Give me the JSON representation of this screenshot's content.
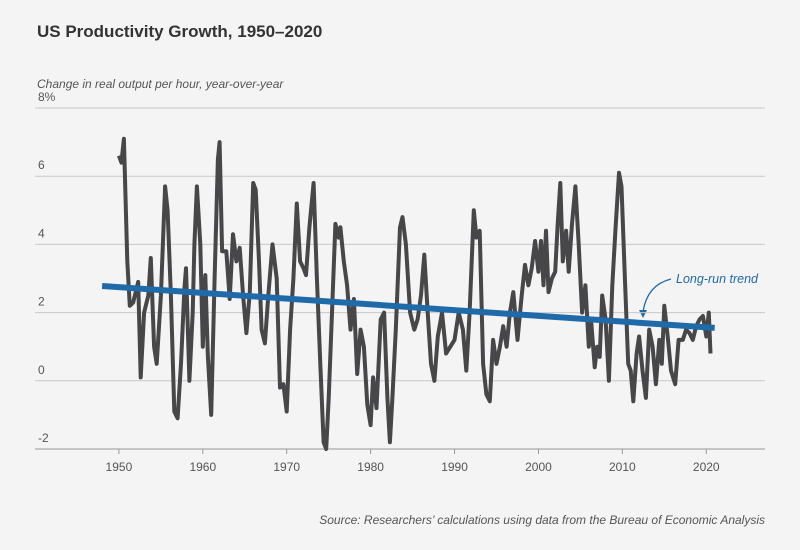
{
  "chart_data": {
    "type": "line",
    "title": "US Productivity Growth, 1950–2020",
    "subtitle": "Change in real output per hour, year-over-year",
    "source": "Source: Researchers’ calculations using data from the Bureau of Economic Analysis",
    "xlim": [
      1940,
      2027
    ],
    "xticks": [
      1950,
      1960,
      1970,
      1980,
      1990,
      2000,
      2010,
      2020
    ],
    "ylim": [
      -2,
      8
    ],
    "yticks": [
      -2,
      0,
      2,
      4,
      6,
      {
        "value": 8,
        "label": "8%"
      }
    ],
    "grid": true,
    "series": [
      {
        "color": "#474749",
        "x": [
          1950.0,
          1950.3,
          1950.6,
          1951.0,
          1951.3,
          1951.7,
          1952.0,
          1952.3,
          1952.6,
          1953.0,
          1953.5,
          1953.8,
          1954.2,
          1954.5,
          1955.0,
          1955.5,
          1955.8,
          1956.2,
          1956.6,
          1957.0,
          1957.4,
          1957.8,
          1958.0,
          1958.4,
          1958.8,
          1959.0,
          1959.3,
          1959.7,
          1960.0,
          1960.3,
          1960.6,
          1961.0,
          1961.4,
          1961.8,
          1962.0,
          1962.3,
          1962.8,
          1963.2,
          1963.6,
          1964.0,
          1964.4,
          1964.8,
          1965.2,
          1965.6,
          1966.0,
          1966.3,
          1966.7,
          1967.0,
          1967.4,
          1967.8,
          1968.3,
          1968.8,
          1969.2,
          1969.6,
          1970.0,
          1970.4,
          1970.8,
          1971.2,
          1971.6,
          1972.0,
          1972.3,
          1972.7,
          1973.2,
          1973.6,
          1974.0,
          1974.4,
          1974.7,
          1975.0,
          1975.4,
          1975.8,
          1976.2,
          1976.4,
          1976.8,
          1977.2,
          1977.6,
          1978.0,
          1978.4,
          1978.8,
          1979.2,
          1979.6,
          1980.0,
          1980.3,
          1980.7,
          1981.2,
          1981.6,
          1982.0,
          1982.3,
          1982.6,
          1983.0,
          1983.5,
          1983.8,
          1984.2,
          1984.7,
          1985.2,
          1985.6,
          1986.0,
          1986.4,
          1986.8,
          1987.2,
          1987.6,
          1988.0,
          1988.5,
          1989.0,
          1989.5,
          1990.0,
          1990.5,
          1991.0,
          1991.4,
          1991.8,
          1992.3,
          1992.6,
          1993.0,
          1993.4,
          1993.8,
          1994.2,
          1994.6,
          1995.0,
          1995.4,
          1995.8,
          1996.2,
          1996.6,
          1997.0,
          1997.5,
          1998.0,
          1998.4,
          1998.8,
          1999.2,
          1999.6,
          2000.0,
          2000.3,
          2000.6,
          2000.9,
          2001.2,
          2001.6,
          2002.0,
          2002.3,
          2002.6,
          2002.9,
          2003.3,
          2003.6,
          2004.0,
          2004.4,
          2004.8,
          2005.2,
          2005.6,
          2006.0,
          2006.3,
          2006.7,
          2007.0,
          2007.3,
          2007.6,
          2008.0,
          2008.4,
          2008.8,
          2009.2,
          2009.6,
          2009.9,
          2010.3,
          2010.7,
          2011.0,
          2011.3,
          2011.7,
          2012.0,
          2012.4,
          2012.8,
          2013.2,
          2013.6,
          2014.0,
          2014.4,
          2014.7,
          2015.0,
          2015.4,
          2015.8,
          2016.3,
          2016.7,
          2017.2,
          2017.6,
          2018.0,
          2018.4,
          2018.8,
          2019.2,
          2019.6,
          2020.0,
          2020.3,
          2020.5
        ],
        "values": [
          6.6,
          6.4,
          7.1,
          3.5,
          2.2,
          2.3,
          2.6,
          2.9,
          0.1,
          2.0,
          2.5,
          3.6,
          1.0,
          0.5,
          2.5,
          5.7,
          5.0,
          2.5,
          -0.9,
          -1.1,
          0.5,
          2.7,
          3.3,
          0.0,
          2.0,
          4.0,
          5.7,
          4.0,
          1.0,
          3.1,
          0.7,
          -1.0,
          3.0,
          6.5,
          7.0,
          3.8,
          3.8,
          2.4,
          4.3,
          3.5,
          3.9,
          2.5,
          1.4,
          2.6,
          5.8,
          5.6,
          3.5,
          1.5,
          1.1,
          2.5,
          4.0,
          3.0,
          -0.2,
          -0.1,
          -0.9,
          1.5,
          3.0,
          5.2,
          3.5,
          3.3,
          3.1,
          4.5,
          5.8,
          3.0,
          0.5,
          -1.8,
          -2.0,
          -0.5,
          2.0,
          4.6,
          4.2,
          4.5,
          3.5,
          2.8,
          1.5,
          2.4,
          0.2,
          1.5,
          1.0,
          -0.7,
          -1.3,
          0.1,
          -0.8,
          1.8,
          2.0,
          -0.5,
          -1.8,
          -0.5,
          1.5,
          4.5,
          4.8,
          4.0,
          2.0,
          1.5,
          1.8,
          2.5,
          3.7,
          2.0,
          0.5,
          0.0,
          1.3,
          2.0,
          0.8,
          1.0,
          1.2,
          2.0,
          1.5,
          0.3,
          2.0,
          5.0,
          4.2,
          4.4,
          0.5,
          -0.4,
          -0.6,
          1.2,
          0.5,
          1.0,
          1.6,
          1.0,
          2.0,
          2.6,
          1.2,
          2.5,
          3.4,
          2.8,
          3.3,
          4.1,
          3.2,
          4.1,
          2.8,
          4.4,
          2.6,
          3.0,
          3.2,
          4.6,
          5.8,
          3.5,
          4.4,
          3.2,
          4.6,
          5.7,
          4.0,
          2.0,
          2.8,
          1.0,
          1.7,
          0.4,
          1.0,
          0.7,
          2.5,
          1.8,
          0.0,
          2.8,
          4.5,
          6.1,
          5.7,
          3.0,
          0.5,
          0.3,
          -0.6,
          0.8,
          1.3,
          0.3,
          -0.5,
          1.5,
          1.0,
          -0.1,
          1.2,
          0.5,
          2.2,
          1.3,
          0.3,
          -0.1,
          1.2,
          1.2,
          1.5,
          1.4,
          1.2,
          1.6,
          1.8,
          1.9,
          1.3,
          2.0,
          0.8
        ]
      },
      {
        "name": "Long-run trend",
        "color": "#1f6aa8",
        "x": [
          1948,
          2021
        ],
        "values": [
          2.78,
          1.55
        ]
      }
    ]
  }
}
